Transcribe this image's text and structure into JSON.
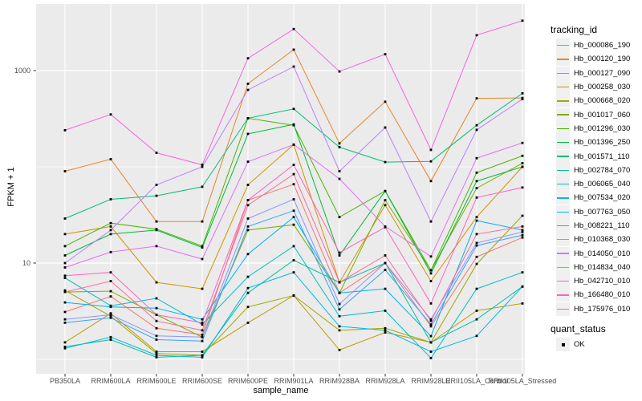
{
  "chart_data": {
    "type": "line",
    "title": "",
    "xlabel": "sample_name",
    "ylabel": "FPKM + 1",
    "y_scale": "log10",
    "ylim": [
      1,
      3500
    ],
    "grid": true,
    "legend_position": "right",
    "point_shape": "small-black-square",
    "y_ticks": [
      {
        "label": "1000",
        "value": 1000
      },
      {
        "label": "10",
        "value": 10
      }
    ],
    "y_minor_gridlines": [
      1,
      100
    ],
    "categories": [
      "PB350LA",
      "RRIM600LA",
      "RRIM600LE",
      "RRIM600SE",
      "RRIM600PE",
      "RRIM901LA",
      "RRIM928BA",
      "RRIM928LA",
      "RRIM928LE",
      "RRII105LA_Control",
      "RRII105LA_Stressed"
    ],
    "series": [
      {
        "name": "Hb_000086_190",
        "color": "#F8766D",
        "values": [
          3.1,
          4.5,
          2.1,
          1.8,
          45,
          66,
          4.9,
          10,
          2.2,
          11.6,
          18.4
        ]
      },
      {
        "name": "Hb_000120_190",
        "color": "#E88526",
        "values": [
          90,
          120,
          27,
          27,
          730,
          1650,
          175,
          475,
          71,
          515,
          520
        ]
      },
      {
        "name": "Hb_000127_090",
        "color": "#D39200",
        "values": [
          20,
          24,
          6.3,
          5.4,
          65,
          170,
          6.3,
          40,
          6.5,
          30,
          100
        ]
      },
      {
        "name": "Hb_000258_030",
        "color": "#BB9D00",
        "values": [
          1.5,
          3.0,
          1.2,
          1.2,
          2.4,
          4.6,
          1.25,
          1.9,
          1.5,
          3.2,
          3.8
        ]
      },
      {
        "name": "Hb_000668_020",
        "color": "#9EA700",
        "values": [
          5.2,
          2.8,
          1.15,
          1.1,
          3.5,
          4.6,
          2.0,
          2.1,
          1.5,
          9.8,
          31
        ]
      },
      {
        "name": "Hb_001017_060",
        "color": "#7CAE00",
        "values": [
          5.0,
          5.1,
          2.9,
          1.7,
          22,
          25,
          4.9,
          45,
          8.4,
          60,
          109
        ]
      },
      {
        "name": "Hb_001296_030",
        "color": "#49B500",
        "values": [
          15,
          26,
          22.5,
          15,
          320,
          270,
          30,
          56,
          8.4,
          87,
          130
        ]
      },
      {
        "name": "Hb_001396_250",
        "color": "#00BA38",
        "values": [
          12,
          20,
          22,
          14.5,
          220,
          276,
          12,
          56,
          7.8,
          71,
          100
        ]
      },
      {
        "name": "Hb_001571_110",
        "color": "#00BF74",
        "values": [
          29,
          46,
          50,
          62,
          320,
          400,
          160,
          112,
          114,
          270,
          580
        ]
      },
      {
        "name": "Hb_002784_070",
        "color": "#00C19F",
        "values": [
          1.35,
          1.6,
          1.05,
          1.1,
          4.9,
          10.7,
          6.3,
          10,
          1.5,
          2.6,
          5.7
        ]
      },
      {
        "name": "Hb_006065_040",
        "color": "#00BFC4",
        "values": [
          7.0,
          3.6,
          4.3,
          2.3,
          7.2,
          15,
          2.8,
          3.2,
          1.03,
          5.4,
          8.0
        ]
      },
      {
        "name": "Hb_007534_020",
        "color": "#00B9E3",
        "values": [
          1.3,
          1.7,
          1.1,
          1.05,
          5.5,
          8.0,
          2.2,
          2.0,
          1.2,
          1.75,
          5.7
        ]
      },
      {
        "name": "Hb_007763_050",
        "color": "#00B0F6",
        "values": [
          3.9,
          3.5,
          3.4,
          2.6,
          12.4,
          30,
          4.9,
          5.4,
          1.74,
          27.6,
          22
        ]
      },
      {
        "name": "Hb_008221_110",
        "color": "#35A2FF",
        "values": [
          2.4,
          2.7,
          1.6,
          1.55,
          24,
          35,
          3.3,
          8.5,
          2.3,
          15.2,
          19.5
        ]
      },
      {
        "name": "Hb_010368_030",
        "color": "#8B93FF",
        "values": [
          2.6,
          2.9,
          1.75,
          1.7,
          29,
          46,
          3.75,
          10,
          2.6,
          16.2,
          21
        ]
      },
      {
        "name": "Hb_014050_010",
        "color": "#BC80FF",
        "values": [
          10,
          22,
          65,
          100,
          630,
          1100,
          90,
          256,
          27,
          242,
          505
        ]
      },
      {
        "name": "Hb_014834_040",
        "color": "#E26EF7",
        "values": [
          9,
          13,
          15,
          11,
          113,
          170,
          75,
          24,
          11.7,
          123,
          177
        ]
      },
      {
        "name": "Hb_042710_010",
        "color": "#F763E0",
        "values": [
          240,
          350,
          140,
          105,
          1340,
          2700,
          980,
          1480,
          150,
          2330,
          3300
        ]
      },
      {
        "name": "Hb_166480_010",
        "color": "#FF61C3",
        "values": [
          7.4,
          8.0,
          2.9,
          2.4,
          45,
          105,
          12.8,
          23.6,
          3.8,
          48,
          61
        ]
      },
      {
        "name": "Hb_175976_010",
        "color": "#FF699C",
        "values": [
          5.0,
          6.5,
          2.5,
          2.0,
          40,
          84,
          6.3,
          12,
          2.5,
          20,
          24
        ]
      }
    ],
    "legend": {
      "tracking_title": "tracking_id",
      "quant_title": "quant_status",
      "quant_items": [
        {
          "label": "OK"
        }
      ]
    }
  },
  "colors": {
    "panel_bg": "#EBEBEB",
    "gridline": "#FFFFFF",
    "axis_text": "#4D4D4D",
    "tick_mark": "#333333",
    "point": "#000000",
    "legend_key_bg": "#F0F0F0"
  }
}
